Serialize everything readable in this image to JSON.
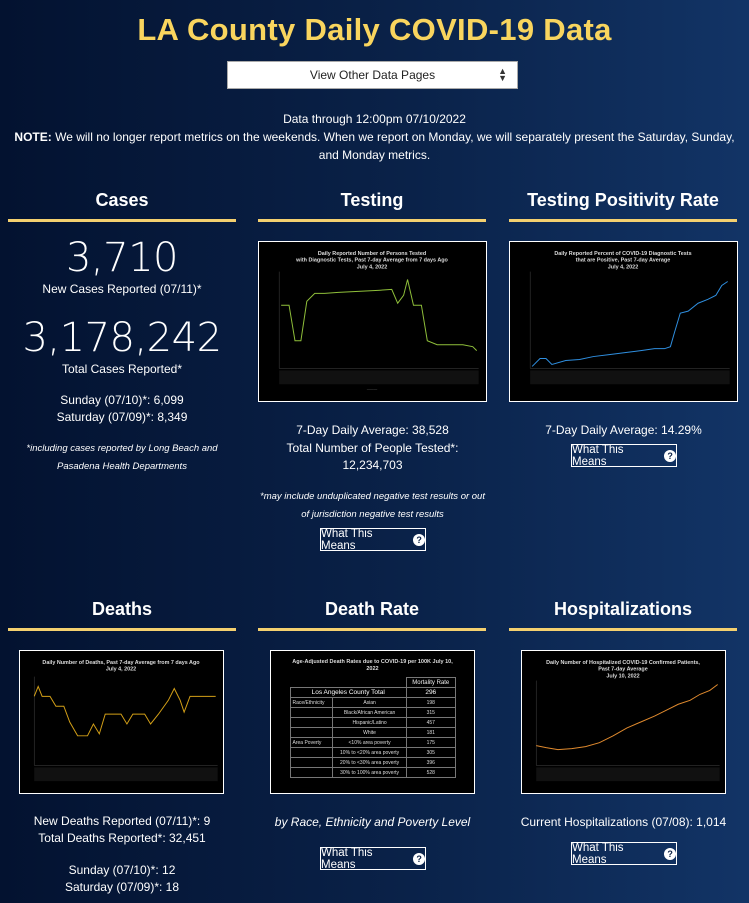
{
  "header": {
    "title": "LA County Daily COVID-19 Data"
  },
  "nav": {
    "select_value": "View Other Data Pages"
  },
  "intro": {
    "data_through": "Data through 12:00pm 07/10/2022",
    "note_label": "NOTE:",
    "note_text": " We will no longer report metrics on the weekends. When we report on Monday, we will separately present the Saturday, Sunday, and Monday metrics."
  },
  "cases": {
    "heading": "Cases",
    "new_count": "3,710",
    "new_label": "New Cases Reported (07/11)*",
    "total_count": "3,178,242",
    "total_label": "Total Cases Reported*",
    "sunday": "Sunday (07/10)*: 6,099",
    "saturday": "Saturday (07/09)*: 8,349",
    "footnote": "*including cases reported by Long Beach and Pasadena Health Departments"
  },
  "testing": {
    "heading": "Testing",
    "chart_title": "Daily Reported Number of Persons Tested with Diagnostic Tests, Past 7-day Average from 7 days Ago July 4, 2022",
    "avg": "7-Day Daily Average: 38,528",
    "total_label": "Total Number of People Tested*:",
    "total_value": "12,234,703",
    "footnote": "*may include unduplicated negative test results or out of jurisdiction negative test results",
    "button": "What This Means"
  },
  "positivity": {
    "heading": "Testing Positivity Rate",
    "chart_title": "Daily Reported Percent of COVID-19 Diagnostic Tests that are Positive, Past 7-day Average July 4, 2022",
    "avg": "7-Day Daily Average: 14.29%",
    "button": "What This Means"
  },
  "deaths": {
    "heading": "Deaths",
    "chart_title": "Daily Number of Deaths, Past 7-day Average from 7 days Ago July 4, 2022",
    "new_deaths": "New Deaths Reported (07/11)*: 9",
    "total_deaths": "Total Deaths Reported*: 32,451",
    "sunday": "Sunday (07/10)*: 12",
    "saturday": "Saturday (07/09)*: 18"
  },
  "death_rate": {
    "heading": "Death Rate",
    "chart_title": "Age-Adjusted Death Rates due to COVID-19 per 100K July 10, 2022",
    "caption": "by Race, Ethnicity and Poverty Level",
    "button": "What This Means",
    "table": {
      "col_header": "Mortality Rate",
      "total_label": "Los Angeles County Total",
      "total_value": "296",
      "rows": [
        {
          "group": "Race/Ethnicity",
          "label": "Asian",
          "value": "198"
        },
        {
          "group": "",
          "label": "Black/African American",
          "value": "315"
        },
        {
          "group": "",
          "label": "Hispanic/Latino",
          "value": "457"
        },
        {
          "group": "",
          "label": "White",
          "value": "181"
        },
        {
          "group": "Area Poverty",
          "label": "<10% area poverty",
          "value": "175"
        },
        {
          "group": "",
          "label": "10% to <20% area poverty",
          "value": "305"
        },
        {
          "group": "",
          "label": "20% to <30% area poverty",
          "value": "396"
        },
        {
          "group": "",
          "label": "30% to 100% area poverty",
          "value": "528"
        }
      ]
    }
  },
  "hospitalizations": {
    "heading": "Hospitalizations",
    "chart_title": "Daily Number of Hospitalized COVID-19 Confirmed Patients, Past 7-day Average July 10, 2022",
    "current": "Current Hospitalizations (07/08): 1,014",
    "button": "What This Means"
  },
  "colors": {
    "title": "#f9d55e",
    "rule": "#f4d06f",
    "testing_line": "#8fbf3a",
    "positivity_line": "#2f8fe0",
    "deaths_line": "#d4a017",
    "hosp_line": "#e08a2e"
  },
  "icons": {
    "select": "updown-arrows-icon",
    "button": "question-circle-icon"
  }
}
